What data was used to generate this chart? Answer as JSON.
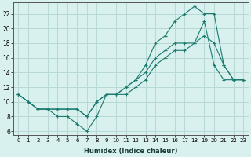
{
  "xlabel": "Humidex (Indice chaleur)",
  "bg_color": "#d8f0ee",
  "grid_color": "#b8d8d5",
  "line_color": "#1a7a6e",
  "xlim": [
    -0.5,
    23.5
  ],
  "ylim": [
    5.5,
    23.5
  ],
  "xticks": [
    0,
    1,
    2,
    3,
    4,
    5,
    6,
    7,
    8,
    9,
    10,
    11,
    12,
    13,
    14,
    15,
    16,
    17,
    18,
    19,
    20,
    21,
    22,
    23
  ],
  "yticks": [
    6,
    8,
    10,
    12,
    14,
    16,
    18,
    20,
    22
  ],
  "line1_x": [
    0,
    1,
    2,
    3,
    4,
    5,
    6,
    7,
    8,
    9,
    10,
    11,
    12,
    13,
    14,
    15,
    16,
    17,
    18,
    19,
    20,
    21,
    22,
    23
  ],
  "line1_y": [
    11,
    10,
    9,
    9,
    8,
    8,
    7,
    6,
    8,
    11,
    11,
    11,
    12,
    13,
    15,
    16,
    17,
    17,
    18,
    21,
    15,
    13,
    13,
    13
  ],
  "line2_x": [
    0,
    1,
    2,
    3,
    4,
    5,
    6,
    7,
    8,
    9,
    10,
    11,
    12,
    13,
    14,
    15,
    16,
    17,
    18,
    19,
    20,
    21,
    22,
    23
  ],
  "line2_y": [
    11,
    10,
    9,
    9,
    9,
    9,
    9,
    8,
    10,
    11,
    11,
    12,
    13,
    15,
    18,
    19,
    21,
    22,
    23,
    22,
    22,
    15,
    13,
    13
  ],
  "line3_x": [
    0,
    1,
    2,
    3,
    4,
    5,
    6,
    7,
    8,
    9,
    10,
    11,
    12,
    13,
    14,
    15,
    16,
    17,
    18,
    19,
    20,
    21,
    22,
    23
  ],
  "line3_y": [
    11,
    10,
    9,
    9,
    9,
    9,
    9,
    8,
    10,
    11,
    11,
    12,
    13,
    14,
    16,
    17,
    18,
    18,
    18,
    19,
    18,
    15,
    13,
    13
  ]
}
